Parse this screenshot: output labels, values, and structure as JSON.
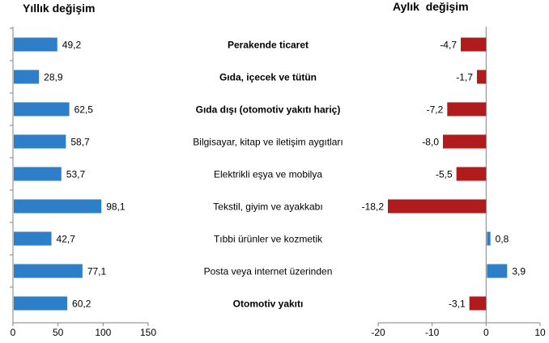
{
  "chart_data": [
    {
      "type": "bar",
      "orientation": "horizontal",
      "title": "Yıllık değişim",
      "categories": [
        "Perakende ticaret",
        "Gıda, içecek ve tütün",
        "Gıda dışı (otomotiv yakıtı hariç)",
        "Bilgisayar, kitap ve iletişim aygıtları",
        "Elektrikli eşya ve mobilya",
        "Tekstil, giyim ve ayakkabı",
        "Tıbbi ürünler ve kozmetik",
        "Posta veya internet üzerinden",
        "Otomotiv yakıtı"
      ],
      "bold_categories": [
        "Perakende ticaret",
        "Gıda, içecek ve tütün",
        "Gıda dışı (otomotiv yakıtı hariç)",
        "Otomotiv yakıtı"
      ],
      "values": [
        49.2,
        28.9,
        62.5,
        58.7,
        53.7,
        98.1,
        42.7,
        77.1,
        60.2
      ],
      "value_labels": [
        "49,2",
        "28,9",
        "62,5",
        "58,7",
        "53,7",
        "98,1",
        "42,7",
        "77,1",
        "60,2"
      ],
      "xlim": [
        0,
        150
      ],
      "xticks": [
        0,
        50,
        100,
        150
      ],
      "xtick_labels": [
        "0",
        "50",
        "100",
        "150"
      ],
      "color": "#2E7FC9",
      "grid": false
    },
    {
      "type": "bar",
      "orientation": "horizontal",
      "title": "Aylık  değişim",
      "categories": [
        "Perakende ticaret",
        "Gıda, içecek ve tütün",
        "Gıda dışı (otomotiv yakıtı hariç)",
        "Bilgisayar, kitap ve iletişim aygıtları",
        "Elektrikli eşya ve mobilya",
        "Tekstil, giyim ve ayakkabı",
        "Tıbbi ürünler ve kozmetik",
        "Posta veya internet üzerinden",
        "Otomotiv yakıtı"
      ],
      "values": [
        -4.7,
        -1.7,
        -7.2,
        -8.0,
        -5.5,
        -18.2,
        0.8,
        3.9,
        -3.1
      ],
      "value_labels": [
        "-4,7",
        "-1,7",
        "-7,2",
        "-8,0",
        "-5,5",
        "-18,2",
        "0,8",
        "3,9",
        "-3,1"
      ],
      "xlim": [
        -20,
        10
      ],
      "xticks": [
        -20,
        -10,
        0,
        10
      ],
      "xtick_labels": [
        "-20",
        "-10",
        "0",
        "10"
      ],
      "negative_color": "#B01C1C",
      "positive_color": "#2E7FC9",
      "grid": false
    }
  ]
}
